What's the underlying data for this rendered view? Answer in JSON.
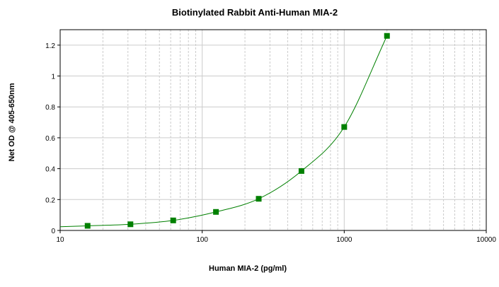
{
  "chart_data": {
    "type": "scatter",
    "title": "Biotinylated Rabbit Anti-Human MIA-2",
    "xlabel": "Human MIA-2 (pg/ml)",
    "ylabel": "Net OD @ 405-650nm",
    "xscale": "log",
    "xlim": [
      10,
      10000
    ],
    "ylim": [
      0,
      1.3
    ],
    "x_ticks": [
      10,
      100,
      1000,
      10000
    ],
    "x_tick_labels": [
      "10",
      "100",
      "1000",
      "10000"
    ],
    "y_ticks": [
      0,
      0.2,
      0.4,
      0.6,
      0.8,
      1,
      1.2
    ],
    "y_tick_labels": [
      "0",
      "0.2",
      "0.4",
      "0.6",
      "0.8",
      "1",
      "1.2"
    ],
    "grid": true,
    "series": [
      {
        "x": [
          15.6,
          31.25,
          62.5,
          125,
          250,
          500,
          1000,
          2000
        ],
        "y": [
          0.03,
          0.04,
          0.065,
          0.12,
          0.205,
          0.385,
          0.67,
          1.26
        ]
      }
    ],
    "fit_curve": true,
    "colors": {
      "marker": "#008000",
      "curve": "#008000",
      "grid": "#cccccc",
      "axis": "#000000"
    }
  }
}
